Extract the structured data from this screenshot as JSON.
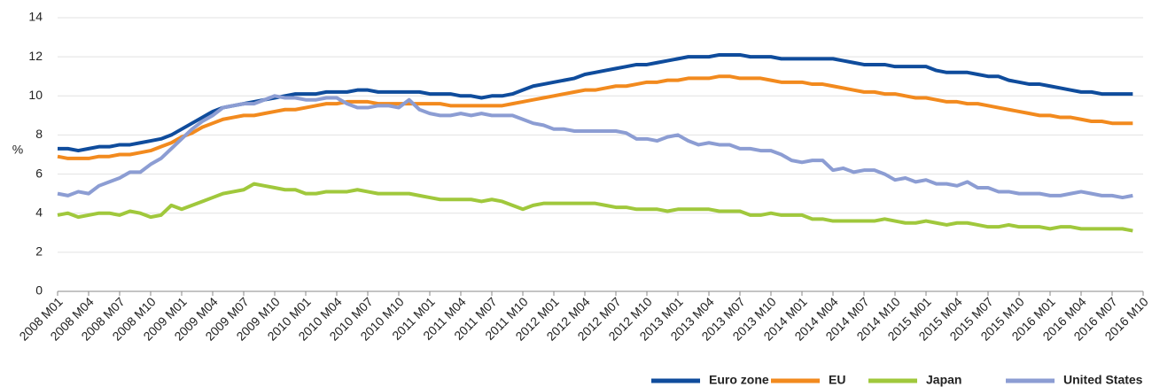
{
  "chart_data": {
    "type": "line",
    "y_label": "%",
    "categories": [
      "2008 M01",
      null,
      null,
      "2008 M04",
      null,
      null,
      "2008 M07",
      null,
      null,
      "2008 M10",
      null,
      null,
      "2009 M01",
      null,
      null,
      "2009 M04",
      null,
      null,
      "2009 M07",
      null,
      null,
      "2009 M10",
      null,
      null,
      "2010 M01",
      null,
      null,
      "2010 M04",
      null,
      null,
      "2010 M07",
      null,
      null,
      "2010 M10",
      null,
      null,
      "2011 M01",
      null,
      null,
      "2011 M04",
      null,
      null,
      "2011 M07",
      null,
      null,
      "2011 M10",
      null,
      null,
      "2012 M01",
      null,
      null,
      "2012 M04",
      null,
      null,
      "2012 M07",
      null,
      null,
      "2012 M10",
      null,
      null,
      "2013 M01",
      null,
      null,
      "2013 M04",
      null,
      null,
      "2013 M07",
      null,
      null,
      "2013 M10",
      null,
      null,
      "2014 M01",
      null,
      null,
      "2014 M04",
      null,
      null,
      "2014 M07",
      null,
      null,
      "2014 M10",
      null,
      null,
      "2015 M01",
      null,
      null,
      "2015 M04",
      null,
      null,
      "2015 M07",
      null,
      null,
      "2015 M10",
      null,
      null,
      "2016 M01",
      null,
      null,
      "2016 M04",
      null,
      null,
      "2016 M07",
      null,
      null,
      "2016 M10"
    ],
    "series": [
      {
        "name": "Euro zone",
        "color": "#0f4c9c",
        "values": [
          7.3,
          7.3,
          7.2,
          7.3,
          7.4,
          7.4,
          7.5,
          7.5,
          7.6,
          7.7,
          7.8,
          8.0,
          8.3,
          8.6,
          8.9,
          9.2,
          9.4,
          9.5,
          9.6,
          9.7,
          9.8,
          9.9,
          10.0,
          10.1,
          10.1,
          10.1,
          10.2,
          10.2,
          10.2,
          10.3,
          10.3,
          10.2,
          10.2,
          10.2,
          10.2,
          10.2,
          10.1,
          10.1,
          10.1,
          10.0,
          10.0,
          9.9,
          10.0,
          10.0,
          10.1,
          10.3,
          10.5,
          10.6,
          10.7,
          10.8,
          10.9,
          11.1,
          11.2,
          11.3,
          11.4,
          11.5,
          11.6,
          11.6,
          11.7,
          11.8,
          11.9,
          12.0,
          12.0,
          12.0,
          12.1,
          12.1,
          12.1,
          12.0,
          12.0,
          12.0,
          11.9,
          11.9,
          11.9,
          11.9,
          11.9,
          11.9,
          11.8,
          11.7,
          11.6,
          11.6,
          11.6,
          11.5,
          11.5,
          11.5,
          11.5,
          11.3,
          11.2,
          11.2,
          11.2,
          11.1,
          11.0,
          11.0,
          10.8,
          10.7,
          10.6,
          10.6,
          10.5,
          10.4,
          10.3,
          10.2,
          10.2,
          10.1,
          10.1,
          10.1,
          10.1,
          null
        ]
      },
      {
        "name": "EU",
        "color": "#f28a1e",
        "values": [
          6.9,
          6.8,
          6.8,
          6.8,
          6.9,
          6.9,
          7.0,
          7.0,
          7.1,
          7.2,
          7.4,
          7.6,
          7.9,
          8.1,
          8.4,
          8.6,
          8.8,
          8.9,
          9.0,
          9.0,
          9.1,
          9.2,
          9.3,
          9.3,
          9.4,
          9.5,
          9.6,
          9.6,
          9.7,
          9.7,
          9.7,
          9.6,
          9.6,
          9.6,
          9.6,
          9.6,
          9.6,
          9.6,
          9.5,
          9.5,
          9.5,
          9.5,
          9.5,
          9.5,
          9.6,
          9.7,
          9.8,
          9.9,
          10.0,
          10.1,
          10.2,
          10.3,
          10.3,
          10.4,
          10.5,
          10.5,
          10.6,
          10.7,
          10.7,
          10.8,
          10.8,
          10.9,
          10.9,
          10.9,
          11.0,
          11.0,
          10.9,
          10.9,
          10.9,
          10.8,
          10.7,
          10.7,
          10.7,
          10.6,
          10.6,
          10.5,
          10.4,
          10.3,
          10.2,
          10.2,
          10.1,
          10.1,
          10.0,
          9.9,
          9.9,
          9.8,
          9.7,
          9.7,
          9.6,
          9.6,
          9.5,
          9.4,
          9.3,
          9.2,
          9.1,
          9.0,
          9.0,
          8.9,
          8.9,
          8.8,
          8.7,
          8.7,
          8.6,
          8.6,
          8.6,
          null
        ]
      },
      {
        "name": "Japan",
        "color": "#a0c83c",
        "values": [
          3.9,
          4.0,
          3.8,
          3.9,
          4.0,
          4.0,
          3.9,
          4.1,
          4.0,
          3.8,
          3.9,
          4.4,
          4.2,
          4.4,
          4.6,
          4.8,
          5.0,
          5.1,
          5.2,
          5.5,
          5.4,
          5.3,
          5.2,
          5.2,
          5.0,
          5.0,
          5.1,
          5.1,
          5.1,
          5.2,
          5.1,
          5.0,
          5.0,
          5.0,
          5.0,
          4.9,
          4.8,
          4.7,
          4.7,
          4.7,
          4.7,
          4.6,
          4.7,
          4.6,
          4.4,
          4.2,
          4.4,
          4.5,
          4.5,
          4.5,
          4.5,
          4.5,
          4.5,
          4.4,
          4.3,
          4.3,
          4.2,
          4.2,
          4.2,
          4.1,
          4.2,
          4.2,
          4.2,
          4.2,
          4.1,
          4.1,
          4.1,
          3.9,
          3.9,
          4.0,
          3.9,
          3.9,
          3.9,
          3.7,
          3.7,
          3.6,
          3.6,
          3.6,
          3.6,
          3.6,
          3.7,
          3.6,
          3.5,
          3.5,
          3.6,
          3.5,
          3.4,
          3.5,
          3.5,
          3.4,
          3.3,
          3.3,
          3.4,
          3.3,
          3.3,
          3.3,
          3.2,
          3.3,
          3.3,
          3.2,
          3.2,
          3.2,
          3.2,
          3.2,
          3.1,
          null
        ]
      },
      {
        "name": "United States",
        "color": "#8c9dd3",
        "values": [
          5.0,
          4.9,
          5.1,
          5.0,
          5.4,
          5.6,
          5.8,
          6.1,
          6.1,
          6.5,
          6.8,
          7.3,
          7.8,
          8.3,
          8.7,
          9.0,
          9.4,
          9.5,
          9.6,
          9.6,
          9.8,
          10.0,
          9.9,
          9.9,
          9.8,
          9.8,
          9.9,
          9.9,
          9.6,
          9.4,
          9.4,
          9.5,
          9.5,
          9.4,
          9.8,
          9.3,
          9.1,
          9.0,
          9.0,
          9.1,
          9.0,
          9.1,
          9.0,
          9.0,
          9.0,
          8.8,
          8.6,
          8.5,
          8.3,
          8.3,
          8.2,
          8.2,
          8.2,
          8.2,
          8.2,
          8.1,
          7.8,
          7.8,
          7.7,
          7.9,
          8.0,
          7.7,
          7.5,
          7.6,
          7.5,
          7.5,
          7.3,
          7.3,
          7.2,
          7.2,
          7.0,
          6.7,
          6.6,
          6.7,
          6.7,
          6.2,
          6.3,
          6.1,
          6.2,
          6.2,
          6.0,
          5.7,
          5.8,
          5.6,
          5.7,
          5.5,
          5.5,
          5.4,
          5.6,
          5.3,
          5.3,
          5.1,
          5.1,
          5.0,
          5.0,
          5.0,
          4.9,
          4.9,
          5.0,
          5.1,
          5.0,
          4.9,
          4.9,
          4.8,
          4.9,
          null
        ]
      }
    ],
    "ylim": [
      0,
      14
    ],
    "yticks": [
      0,
      2,
      4,
      6,
      8,
      10,
      12,
      14
    ],
    "grid": true,
    "legend": "bottom-right"
  }
}
